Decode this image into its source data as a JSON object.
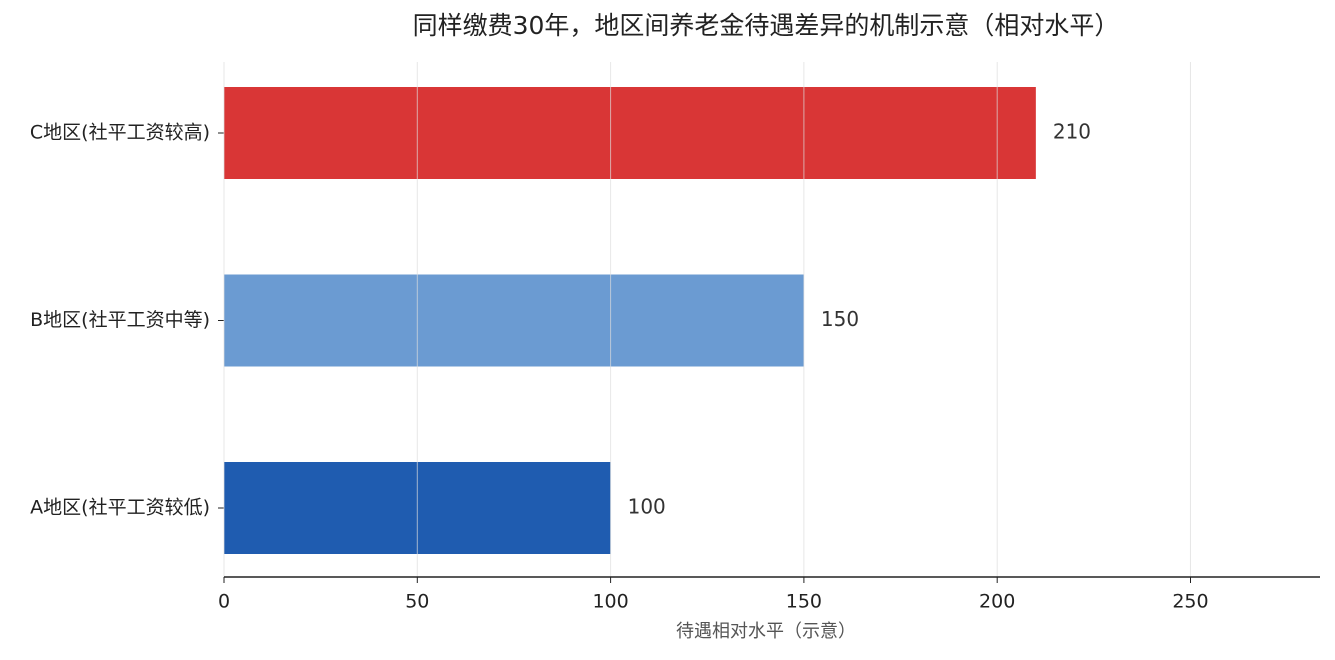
{
  "chart_data": {
    "type": "barh",
    "title": "同样缴费30年，地区间养老金待遇差异的机制示意（相对水平）",
    "x_label": "待遇相对水平（示意）",
    "categories": [
      "A地区(社平工资较低)",
      "B地区(社平工资中等)",
      "C地区(社平工资较高)"
    ],
    "values": [
      100,
      150,
      210
    ],
    "colors": [
      "#1f5cb0",
      "#6b9bd2",
      "#d93636"
    ],
    "xlim": [
      0,
      283.5
    ],
    "xticks": [
      0,
      50,
      100,
      150,
      200,
      250
    ],
    "grid": true
  }
}
